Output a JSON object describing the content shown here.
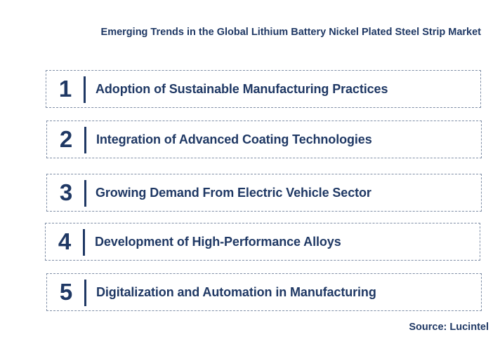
{
  "title": "Emerging Trends in the Global Lithium Battery Nickel Plated Steel Strip Market",
  "trends": [
    {
      "number": "1",
      "label": "Adoption of Sustainable Manufacturing Practices"
    },
    {
      "number": "2",
      "label": "Integration of Advanced Coating Technologies"
    },
    {
      "number": "3",
      "label": "Growing Demand From Electric Vehicle Sector"
    },
    {
      "number": "4",
      "label": "Development of High-Performance Alloys"
    },
    {
      "number": "5",
      "label": "Digitalization and Automation in Manufacturing"
    }
  ],
  "source": "Source: Lucintel",
  "colors": {
    "text": "#1f3864",
    "border": "#7f8ea6",
    "background": "#ffffff"
  }
}
